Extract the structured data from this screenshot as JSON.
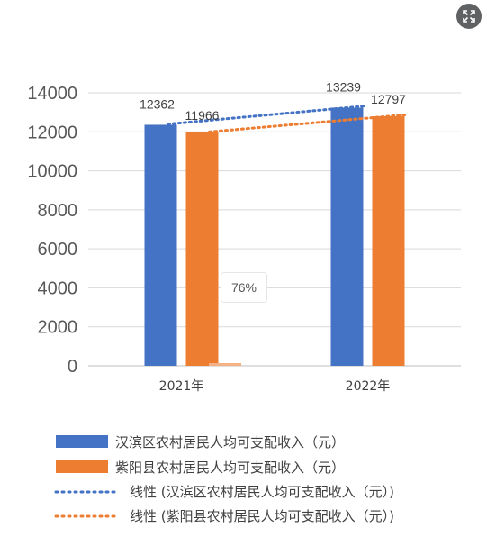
{
  "viewer": {
    "zoom_label": "76%",
    "expand_icon": "expand-icon"
  },
  "chart_data": {
    "type": "bar",
    "categories": [
      "2021年",
      "2022年"
    ],
    "series": [
      {
        "name": "汉滨区农村居民人均可支配收入（元）",
        "values": [
          12362,
          13239
        ],
        "color": "#4472C4"
      },
      {
        "name": "紫阳县农村居民人均可支配收入（元）",
        "values": [
          11966,
          12797
        ],
        "color": "#ED7D31"
      }
    ],
    "trendlines": [
      {
        "name": "线性 (汉滨区农村居民人均可支配收入（元）)",
        "series_index": 0,
        "type": "linear",
        "color": "#4472C4",
        "style": "dotted"
      },
      {
        "name": "线性 (紫阳县农村居民人均可支配收入（元）)",
        "series_index": 1,
        "type": "linear",
        "color": "#ED7D31",
        "style": "dotted"
      }
    ],
    "ylim": [
      0,
      14000
    ],
    "yticks": [
      "0",
      "2000",
      "4000",
      "6000",
      "8000",
      "10000",
      "12000",
      "14000"
    ],
    "data_labels": [
      [
        "12362",
        "13239"
      ],
      [
        "11966",
        "12797"
      ]
    ],
    "grid": true,
    "legend_position": "bottom",
    "title": "",
    "xlabel": "",
    "ylabel": ""
  }
}
